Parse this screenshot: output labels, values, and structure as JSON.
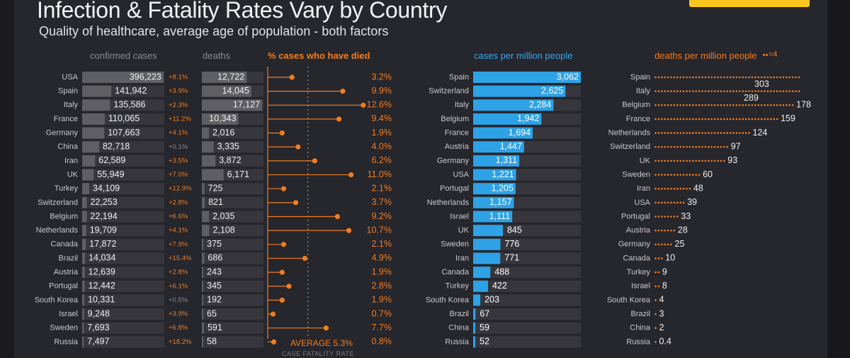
{
  "header": {
    "title": "Infection & Fatality Rates Vary by Country",
    "subtitle": "Quality of healthcare, average age of population - both factors"
  },
  "columns": {
    "confirmed": "confirmed cases",
    "deaths": "deaths",
    "pct": "% cases who have died",
    "cpm": "cases per million people",
    "dpm": "deaths per million people",
    "dots_key": "=4"
  },
  "average": {
    "label": "AVERAGE",
    "value": "5.3%",
    "sublabel": "CASE FATALITY RATE"
  },
  "colors": {
    "background": "#26262d",
    "orange": "#ef7d22",
    "blue": "#2ea2e6",
    "gray_bar": "#5e5e63",
    "dark_bar": "#36363c"
  },
  "chart_data": [
    {
      "type": "bar",
      "title": "confirmed cases",
      "categories": [
        "USA",
        "Spain",
        "Italy",
        "France",
        "Germany",
        "China",
        "Iran",
        "UK",
        "Turkey",
        "Switzerland",
        "Belgium",
        "Netherlands",
        "Canada",
        "Brazil",
        "Austria",
        "Portugal",
        "South Korea",
        "Israel",
        "Sweden",
        "Russia"
      ],
      "values": [
        396223,
        141942,
        135586,
        110065,
        107663,
        82718,
        62589,
        55949,
        34109,
        22253,
        22194,
        19709,
        17872,
        14034,
        12639,
        12442,
        10331,
        9248,
        7693,
        7497
      ],
      "value_labels": [
        "396,223",
        "141,942",
        "135,586",
        "110,065",
        "107,663",
        "82,718",
        "62,589",
        "55,949",
        "34,109",
        "22,253",
        "22,194",
        "19,709",
        "17,872",
        "14,034",
        "12,639",
        "12,442",
        "10,331",
        "9,248",
        "7,693",
        "7,497"
      ],
      "growth": [
        "+8.1%",
        "+3.9%",
        "+2.3%",
        "+11.2%",
        "+4.1%",
        "+0.1%",
        "+3.5%",
        "+7.0%",
        "+12.9%",
        "+2.8%",
        "+6.6%",
        "+4.1%",
        "+7.9%",
        "+15.4%",
        "+2.8%",
        "+6.1%",
        "+0.5%",
        "+3.9%",
        "+6.8%",
        "+18.2%"
      ]
    },
    {
      "type": "bar",
      "title": "deaths",
      "categories": [
        "USA",
        "Spain",
        "Italy",
        "France",
        "Germany",
        "China",
        "Iran",
        "UK",
        "Turkey",
        "Switzerland",
        "Belgium",
        "Netherlands",
        "Canada",
        "Brazil",
        "Austria",
        "Portugal",
        "South Korea",
        "Israel",
        "Sweden",
        "Russia"
      ],
      "values": [
        12722,
        14045,
        17127,
        10343,
        2016,
        3335,
        3872,
        6171,
        725,
        821,
        2035,
        2108,
        375,
        686,
        243,
        345,
        192,
        65,
        591,
        58
      ],
      "value_labels": [
        "12,722",
        "14,045",
        "17,127",
        "10,343",
        "2,016",
        "3,335",
        "3,872",
        "6,171",
        "725",
        "821",
        "2,035",
        "2,108",
        "375",
        "686",
        "243",
        "345",
        "192",
        "65",
        "591",
        "58"
      ]
    },
    {
      "type": "scatter",
      "title": "% cases who have died",
      "categories": [
        "USA",
        "Spain",
        "Italy",
        "France",
        "Germany",
        "China",
        "Iran",
        "UK",
        "Turkey",
        "Switzerland",
        "Belgium",
        "Netherlands",
        "Canada",
        "Brazil",
        "Austria",
        "Portugal",
        "South Korea",
        "Israel",
        "Sweden",
        "Russia"
      ],
      "values": [
        3.2,
        9.9,
        12.6,
        9.4,
        1.9,
        4.0,
        6.2,
        11.0,
        2.1,
        3.7,
        9.2,
        10.7,
        2.1,
        4.9,
        1.9,
        2.8,
        1.9,
        0.7,
        7.7,
        0.8
      ],
      "value_labels": [
        "3.2%",
        "9.9%",
        "12.6%",
        "9.4%",
        "1.9%",
        "4.0%",
        "6.2%",
        "11.0%",
        "2.1%",
        "3.7%",
        "9.2%",
        "10.7%",
        "2.1%",
        "4.9%",
        "1.9%",
        "2.8%",
        "1.9%",
        "0.7%",
        "7.7%",
        "0.8%"
      ],
      "average": 5.3
    },
    {
      "type": "bar",
      "title": "cases per million people",
      "categories": [
        "Spain",
        "Switzerland",
        "Italy",
        "Belgium",
        "France",
        "Austria",
        "Germany",
        "USA",
        "Portugal",
        "Netherlands",
        "Israel",
        "UK",
        "Sweden",
        "Iran",
        "Canada",
        "Turkey",
        "South Korea",
        "Brazil",
        "China",
        "Russia"
      ],
      "values": [
        3062,
        2625,
        2284,
        1942,
        1694,
        1447,
        1311,
        1221,
        1205,
        1157,
        1111,
        845,
        776,
        771,
        488,
        422,
        203,
        67,
        59,
        52
      ],
      "value_labels": [
        "3,062",
        "2,625",
        "2,284",
        "1,942",
        "1,694",
        "1,447",
        "1,311",
        "1,221",
        "1,205",
        "1,157",
        "1,111",
        "845",
        "776",
        "771",
        "488",
        "422",
        "203",
        "67",
        "59",
        "52"
      ]
    },
    {
      "type": "bar",
      "title": "deaths per million people",
      "categories": [
        "Spain",
        "Italy",
        "Belgium",
        "France",
        "Netherlands",
        "Switzerland",
        "UK",
        "Sweden",
        "Iran",
        "USA",
        "Portugal",
        "Austria",
        "Germany",
        "Canada",
        "Turkey",
        "Israel",
        "South Korea",
        "Brazil",
        "China",
        "Russia"
      ],
      "values": [
        303,
        289,
        178,
        159,
        124,
        97,
        93,
        60,
        48,
        39,
        33,
        28,
        25,
        10,
        9,
        8,
        4,
        3,
        2,
        0.4
      ],
      "value_labels": [
        "303",
        "289",
        "178",
        "159",
        "124",
        "97",
        "93",
        "60",
        "48",
        "39",
        "33",
        "28",
        "25",
        "10",
        "9",
        "8",
        "4",
        "3",
        "2",
        "0.4"
      ],
      "legend": "=4"
    }
  ]
}
